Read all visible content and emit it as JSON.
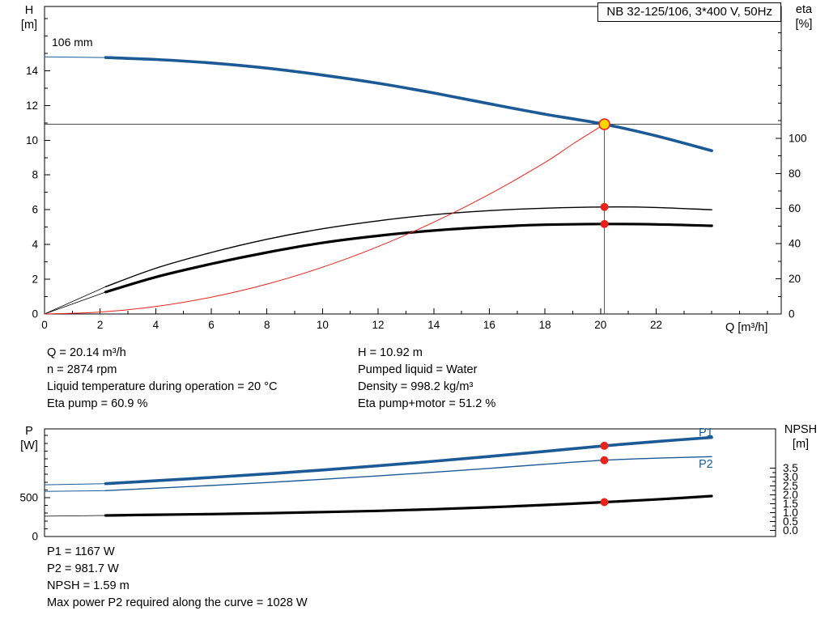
{
  "title_box": {
    "label": "NB 32-125/106, 3*400 V, 50Hz"
  },
  "labels": {
    "h": "H",
    "h_unit": "[m]",
    "eta": "eta",
    "eta_unit": "[%]",
    "q_axis": "Q [m³/h]",
    "impeller": "106 mm",
    "p": "P",
    "p_unit": "[W]",
    "npsh": "NPSH",
    "npsh_unit": "[m]",
    "p1": "P1",
    "p2": "P2"
  },
  "colors": {
    "curve_blue": "#1c5a96",
    "curve_black": "#000000",
    "curve_red": "#e8231c",
    "duty_fill": "#ffd500",
    "dot_red": "#e8231c",
    "frame": "#000000"
  },
  "operating_info": {
    "col1": [
      "Q = 20.14 m³/h",
      "n = 2874 rpm",
      "Liquid temperature during operation = 20 °C",
      "Eta pump = 60.9 %"
    ],
    "col2": [
      "H = 10.92 m",
      "Pumped liquid = Water",
      "Density = 998.2 kg/m³",
      "Eta pump+motor = 51.2 %"
    ]
  },
  "result_info": [
    "P1 = 1167 W",
    "P2 = 981.7 W",
    "NPSH = 1.59 m",
    "Max power P2 required along the curve = 1028 W"
  ],
  "chart_data": [
    {
      "type": "line",
      "title": "NB 32-125/106, 3*400 V, 50Hz",
      "x": {
        "label": "Q [m³/h]",
        "min": 0,
        "max": 26.5,
        "minor_step": 1,
        "decimals": 0,
        "labeled_ticks": [
          0,
          2,
          4,
          6,
          8,
          10,
          12,
          14,
          16,
          18,
          20,
          22
        ]
      },
      "y_left": {
        "label": "H [m]",
        "min": 0,
        "max": 17.7,
        "minor_step": 1,
        "decimals": 0,
        "labeled_ticks": [
          0,
          2,
          4,
          6,
          8,
          10,
          12,
          14
        ]
      },
      "y_right": {
        "label": "eta [%]",
        "min": 0,
        "max": 175,
        "minor_step": 10,
        "decimals": 0,
        "labeled_ticks": [
          0,
          20,
          40,
          60,
          80,
          100
        ]
      },
      "series": [
        {
          "name": "head-curve-lead",
          "axis": "left",
          "color": "blue",
          "width": 1,
          "points": [
            [
              0,
              14.8
            ],
            [
              2.2,
              14.76
            ]
          ]
        },
        {
          "name": "head-curve",
          "axis": "left",
          "color": "blue",
          "width": 3.6,
          "points": [
            [
              2.2,
              14.76
            ],
            [
              4,
              14.65
            ],
            [
              6,
              14.45
            ],
            [
              8,
              14.15
            ],
            [
              10,
              13.75
            ],
            [
              12,
              13.28
            ],
            [
              14,
              12.72
            ],
            [
              16,
              12.1
            ],
            [
              18,
              11.5
            ],
            [
              20.14,
              10.92
            ],
            [
              22,
              10.25
            ],
            [
              24,
              9.4
            ]
          ]
        },
        {
          "name": "eta-pump-lead",
          "axis": "right",
          "color": "black",
          "width": 0.8,
          "points": [
            [
              0,
              0
            ],
            [
              2.2,
              15.5
            ]
          ]
        },
        {
          "name": "eta-pump-curve",
          "axis": "right",
          "color": "black",
          "width": 1.4,
          "points": [
            [
              2.2,
              15.5
            ],
            [
              4,
              26
            ],
            [
              6,
              35
            ],
            [
              8,
              42.5
            ],
            [
              10,
              48.5
            ],
            [
              12,
              53
            ],
            [
              14,
              56.5
            ],
            [
              16,
              58.8
            ],
            [
              18,
              60.2
            ],
            [
              20.14,
              60.9
            ],
            [
              22,
              60.6
            ],
            [
              24,
              59.3
            ]
          ]
        },
        {
          "name": "eta-pump-motor-lead",
          "axis": "right",
          "color": "black",
          "width": 0.8,
          "points": [
            [
              0,
              0
            ],
            [
              2.2,
              12.5
            ]
          ]
        },
        {
          "name": "eta-pump-motor-curve",
          "axis": "right",
          "color": "black",
          "width": 3.2,
          "points": [
            [
              2.2,
              12.5
            ],
            [
              4,
              21
            ],
            [
              6,
              28.5
            ],
            [
              8,
              35
            ],
            [
              10,
              40.5
            ],
            [
              12,
              44.5
            ],
            [
              14,
              47.5
            ],
            [
              16,
              49.5
            ],
            [
              18,
              50.8
            ],
            [
              20.14,
              51.2
            ],
            [
              22,
              51.0
            ],
            [
              24,
              50.2
            ]
          ]
        },
        {
          "name": "system-curve",
          "axis": "left",
          "color": "red",
          "width": 1,
          "points": [
            [
              0,
              0
            ],
            [
              2,
              0.11
            ],
            [
              4,
              0.43
            ],
            [
              6,
              0.97
            ],
            [
              8,
              1.72
            ],
            [
              10,
              2.69
            ],
            [
              12,
              3.88
            ],
            [
              14,
              5.28
            ],
            [
              16,
              6.89
            ],
            [
              18,
              8.72
            ],
            [
              19,
              9.78
            ],
            [
              20.14,
              10.92
            ]
          ]
        }
      ],
      "reference_lines": [
        {
          "name": "duty-h-line",
          "orient": "h",
          "value": 10.92
        },
        {
          "name": "duty-q-line",
          "orient": "v",
          "q": 20.14,
          "to_left_value": 10.92
        }
      ],
      "markers": [
        {
          "name": "duty-point",
          "q": 20.14,
          "axis": "left",
          "value": 10.92,
          "r": 6.5,
          "fill": "yellow",
          "stroke": "red"
        },
        {
          "name": "eta-pump-point",
          "q": 20.14,
          "axis": "right",
          "value": 60.9,
          "r": 5,
          "fill": "red"
        },
        {
          "name": "eta-pump-motor-point",
          "q": 20.14,
          "axis": "right",
          "value": 51.2,
          "r": 5,
          "fill": "red"
        }
      ]
    },
    {
      "type": "line",
      "x": {
        "min": 0,
        "max": 26.3
      },
      "y_left": {
        "label": "P [W]",
        "min": 0,
        "max": 1385,
        "minor_step": 100,
        "decimals": 0,
        "tick_max": 1300,
        "labeled_ticks": [
          0,
          500
        ]
      },
      "y_right": {
        "label": "NPSH [m]",
        "min": -0.34,
        "max": 5.7,
        "minor_step": 0.25,
        "decimals": 1,
        "tick_min": 0,
        "tick_max": 3.5,
        "labeled_ticks": [
          0,
          0.5,
          1,
          1.5,
          2,
          2.5,
          3,
          3.5
        ]
      },
      "series": [
        {
          "name": "p1-curve-lead",
          "axis": "left",
          "color": "blue",
          "width": 1,
          "points": [
            [
              0,
              665
            ],
            [
              2.2,
              680
            ]
          ]
        },
        {
          "name": "p1-curve",
          "axis": "left",
          "color": "blue",
          "width": 3.6,
          "points": [
            [
              2.2,
              680
            ],
            [
              4,
              718
            ],
            [
              6,
              760
            ],
            [
              8,
              806
            ],
            [
              10,
              856
            ],
            [
              12,
              910
            ],
            [
              14,
              968
            ],
            [
              16,
              1030
            ],
            [
              18,
              1096
            ],
            [
              20.14,
              1167
            ],
            [
              22,
              1222
            ],
            [
              24,
              1275
            ]
          ]
        },
        {
          "name": "p2-curve-lead",
          "axis": "left",
          "color": "blue",
          "width": 1,
          "points": [
            [
              0,
              580
            ],
            [
              2.2,
              590
            ]
          ]
        },
        {
          "name": "p2-curve",
          "axis": "left",
          "color": "blue",
          "width": 1.4,
          "points": [
            [
              2.2,
              590
            ],
            [
              4,
              622
            ],
            [
              6,
              657
            ],
            [
              8,
              695
            ],
            [
              10,
              736
            ],
            [
              12,
              780
            ],
            [
              14,
              827
            ],
            [
              16,
              877
            ],
            [
              18,
              930
            ],
            [
              20.14,
              981.7
            ],
            [
              22,
              1008
            ],
            [
              24,
              1028
            ]
          ]
        },
        {
          "name": "npsh-curve-lead",
          "axis": "right",
          "color": "black",
          "width": 0.8,
          "points": [
            [
              0,
              0.8
            ],
            [
              2.2,
              0.84
            ]
          ]
        },
        {
          "name": "npsh-curve",
          "axis": "right",
          "color": "black",
          "width": 3.2,
          "points": [
            [
              2.2,
              0.84
            ],
            [
              4,
              0.88
            ],
            [
              6,
              0.92
            ],
            [
              8,
              0.97
            ],
            [
              10,
              1.03
            ],
            [
              12,
              1.1
            ],
            [
              14,
              1.19
            ],
            [
              16,
              1.3
            ],
            [
              18,
              1.43
            ],
            [
              20.14,
              1.59
            ],
            [
              22,
              1.74
            ],
            [
              24,
              1.93
            ]
          ]
        }
      ],
      "markers": [
        {
          "name": "p1-point",
          "q": 20.14,
          "axis": "left",
          "value": 1167,
          "r": 5,
          "fill": "red"
        },
        {
          "name": "p2-point",
          "q": 20.14,
          "axis": "left",
          "value": 981.7,
          "r": 5,
          "fill": "red"
        },
        {
          "name": "npsh-point",
          "q": 20.14,
          "axis": "right",
          "value": 1.59,
          "r": 5,
          "fill": "red"
        }
      ]
    }
  ]
}
